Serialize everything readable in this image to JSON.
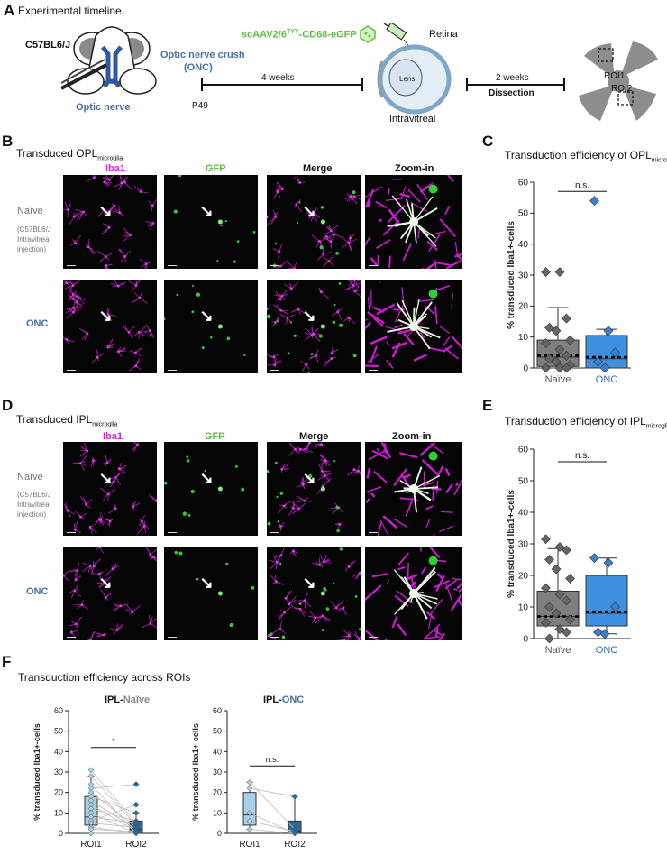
{
  "panel_a": {
    "letter": "A",
    "title": "Experimental timeline",
    "mouse_strain": "C57BL6/J",
    "optic_nerve_label": "Optic nerve",
    "onc_label_line1": "Optic nerve crush",
    "onc_label_line2": "(ONC)",
    "p49": "P49",
    "interval1": "4 weeks",
    "vector_prefix": "scAAV2/6",
    "vector_sup": "TYY",
    "vector_suffix": "-CD68-eGFP",
    "retina": "Retina",
    "lens": "Lens",
    "intravitreal": "Intravitreal",
    "interval2": "2 weeks",
    "dissection": "Dissection",
    "roi1": "ROI1",
    "roi2": "ROI2"
  },
  "panel_b": {
    "letter": "B",
    "title_main": "Transduced OPL",
    "title_sub": "microglia",
    "col_iba1": "Iba1",
    "col_gfp": "GFP",
    "col_merge": "Merge",
    "col_zoom": "Zoom-in",
    "row_naive": "Naïve",
    "row_naive_note1": "(C57BL6/J",
    "row_naive_note2": "Intravitreal",
    "row_naive_note3": "injection)",
    "row_onc": "ONC"
  },
  "panel_d": {
    "letter": "D",
    "title_main": "Transduced IPL",
    "title_sub": "microglia",
    "col_iba1": "Iba1",
    "col_gfp": "GFP",
    "col_merge": "Merge",
    "col_zoom": "Zoom-in",
    "row_naive": "Naïve",
    "row_naive_note1": "(C57BL6/J",
    "row_naive_note2": "Intravitreal",
    "row_naive_note3": "injection)",
    "row_onc": "ONC"
  },
  "panel_c": {
    "letter": "C",
    "title_main": "Transduction efficiency of OPL",
    "title_sub": "microglia"
  },
  "panel_e": {
    "letter": "E",
    "title_main": "Transduction efficiency of IPL",
    "title_sub": "microglia"
  },
  "panel_f": {
    "letter": "F",
    "title": "Transduction efficiency across ROIs",
    "left_title_prefix": "IPL-",
    "left_title_group": "Naïve",
    "right_title_prefix": "IPL-",
    "right_title_group": "ONC"
  },
  "chart_data": [
    {
      "id": "C",
      "type": "box",
      "ylabel": "% transduced Iba1+-cells",
      "ylim": [
        0,
        60
      ],
      "yticks": [
        "0",
        "10",
        "20",
        "30",
        "40",
        "50",
        "60"
      ],
      "categories": [
        "Naïve",
        "ONC"
      ],
      "colors": {
        "Naïve": "#7f7f7f",
        "ONC": "#3d8fe0"
      },
      "significance": "n.s.",
      "boxes": [
        {
          "name": "Naïve",
          "q1": 0.5,
          "median": 3.5,
          "q3": 9,
          "whisker_low": 0,
          "whisker_high": 19.5,
          "mean": 4
        },
        {
          "name": "ONC",
          "q1": 0,
          "median": 3,
          "q3": 10.5,
          "whisker_low": 0,
          "whisker_high": 12.5,
          "mean": 3.5
        }
      ],
      "points": [
        {
          "group": "Naïve",
          "values": [
            31,
            31,
            16,
            13,
            12,
            9,
            8,
            6,
            4,
            3,
            2,
            1,
            0,
            0,
            0
          ]
        },
        {
          "group": "ONC",
          "values": [
            54,
            12,
            5,
            2,
            0
          ]
        }
      ]
    },
    {
      "id": "E",
      "type": "box",
      "ylabel": "% transduced Iba1+-cells",
      "ylim": [
        0,
        60
      ],
      "yticks": [
        "0",
        "10",
        "20",
        "30",
        "40",
        "50",
        "60"
      ],
      "categories": [
        "Naïve",
        "ONC"
      ],
      "colors": {
        "Naïve": "#7f7f7f",
        "ONC": "#3d8fe0"
      },
      "significance": "n.s.",
      "boxes": [
        {
          "name": "Naïve",
          "q1": 4,
          "median": 7,
          "q3": 15,
          "whisker_low": 0,
          "whisker_high": 28.5,
          "mean": 7
        },
        {
          "name": "ONC",
          "q1": 4,
          "median": 8,
          "q3": 20,
          "whisker_low": 1.5,
          "whisker_high": 25.5,
          "mean": 8.5
        }
      ],
      "points": [
        {
          "group": "Naïve",
          "values": [
            31.5,
            29,
            28,
            25,
            22,
            19,
            16,
            14,
            12,
            10,
            8,
            6,
            5,
            3,
            2,
            0
          ]
        },
        {
          "group": "ONC",
          "values": [
            25.5,
            24,
            10,
            2,
            1.5
          ]
        }
      ]
    },
    {
      "id": "F-left",
      "type": "paired_box",
      "ylabel": "% transduced Iba1+-cells",
      "ylim": [
        0,
        60
      ],
      "yticks": [
        "0",
        "10",
        "20",
        "30",
        "40",
        "50",
        "60"
      ],
      "categories": [
        "ROI1",
        "ROI2"
      ],
      "colors": {
        "ROI1": "#a9cfe6",
        "ROI2": "#2a6a9e"
      },
      "significance": "*",
      "boxes": [
        {
          "name": "ROI1",
          "q1": 4,
          "median": 8,
          "q3": 18,
          "whisker_low": 0,
          "whisker_high": 28,
          "mean": 10
        },
        {
          "name": "ROI2",
          "q1": 0,
          "median": 2,
          "q3": 6,
          "whisker_low": 0,
          "whisker_high": 10,
          "mean": 4
        }
      ],
      "pairs": [
        [
          31,
          5
        ],
        [
          28,
          4
        ],
        [
          24,
          0
        ],
        [
          22,
          24
        ],
        [
          20,
          3
        ],
        [
          18,
          10
        ],
        [
          16,
          2
        ],
        [
          14,
          1
        ],
        [
          12,
          6
        ],
        [
          10,
          0
        ],
        [
          8,
          5
        ],
        [
          6,
          14
        ],
        [
          5,
          3
        ],
        [
          3,
          0
        ],
        [
          2,
          1
        ],
        [
          0,
          0
        ]
      ]
    },
    {
      "id": "F-right",
      "type": "paired_box",
      "ylabel": "% transduced Iba1+-cells",
      "ylim": [
        0,
        60
      ],
      "yticks": [
        "0",
        "10",
        "20",
        "30",
        "40",
        "50",
        "60"
      ],
      "categories": [
        "ROI1",
        "ROI2"
      ],
      "colors": {
        "ROI1": "#a9cfe6",
        "ROI2": "#2a6a9e"
      },
      "significance": "n.s.",
      "boxes": [
        {
          "name": "ROI1",
          "q1": 4,
          "median": 9,
          "q3": 20,
          "whisker_low": 2,
          "whisker_high": 25,
          "mean": 10
        },
        {
          "name": "ROI2",
          "q1": 0,
          "median": 1,
          "q3": 6,
          "whisker_low": 0,
          "whisker_high": 18,
          "mean": 4
        }
      ],
      "pairs": [
        [
          25,
          2
        ],
        [
          22,
          18
        ],
        [
          10,
          0
        ],
        [
          6,
          1
        ],
        [
          2,
          0
        ]
      ]
    }
  ]
}
